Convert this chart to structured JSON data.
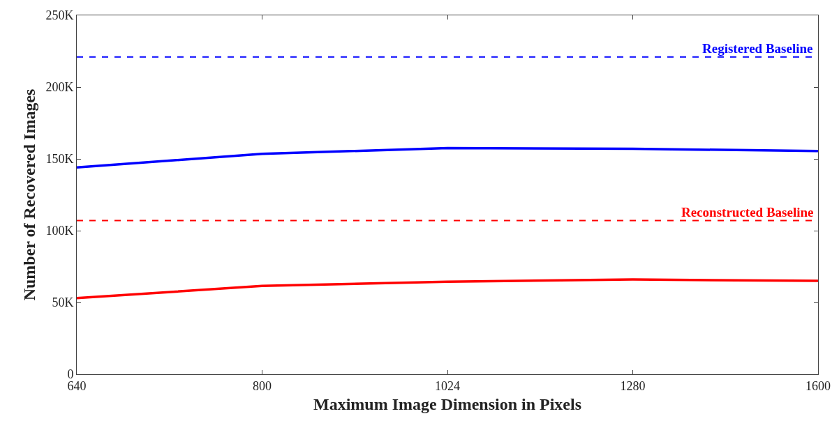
{
  "chart_data": {
    "type": "line",
    "xlabel": "Maximum Image Dimension in Pixels",
    "ylabel": "Number of Recovered Images",
    "categories": [
      "640",
      "800",
      "1024",
      "1280",
      "1600"
    ],
    "series": [
      {
        "color": "#0000ff",
        "values": [
          144000,
          153500,
          157500,
          157000,
          155500
        ]
      },
      {
        "color": "#ff0000",
        "values": [
          53000,
          61500,
          64500,
          66000,
          65000
        ]
      }
    ],
    "ylim": [
      0,
      250000
    ],
    "yticks": [
      {
        "value": 0,
        "label": "0"
      },
      {
        "value": 50000,
        "label": "50K"
      },
      {
        "value": 100000,
        "label": "100K"
      },
      {
        "value": 150000,
        "label": "150K"
      },
      {
        "value": 200000,
        "label": "200K"
      },
      {
        "value": 250000,
        "label": "250K"
      }
    ],
    "ref_lines": [
      {
        "axis": "y",
        "value": 221000,
        "label": "Registered Baseline",
        "color": "#0000ff",
        "line_style": "dashed"
      },
      {
        "axis": "y",
        "value": 107000,
        "label": "Reconstructed Baseline",
        "color": "#ff0000",
        "line_style": "dashed"
      }
    ],
    "marker": "none",
    "line_style": "solid"
  }
}
